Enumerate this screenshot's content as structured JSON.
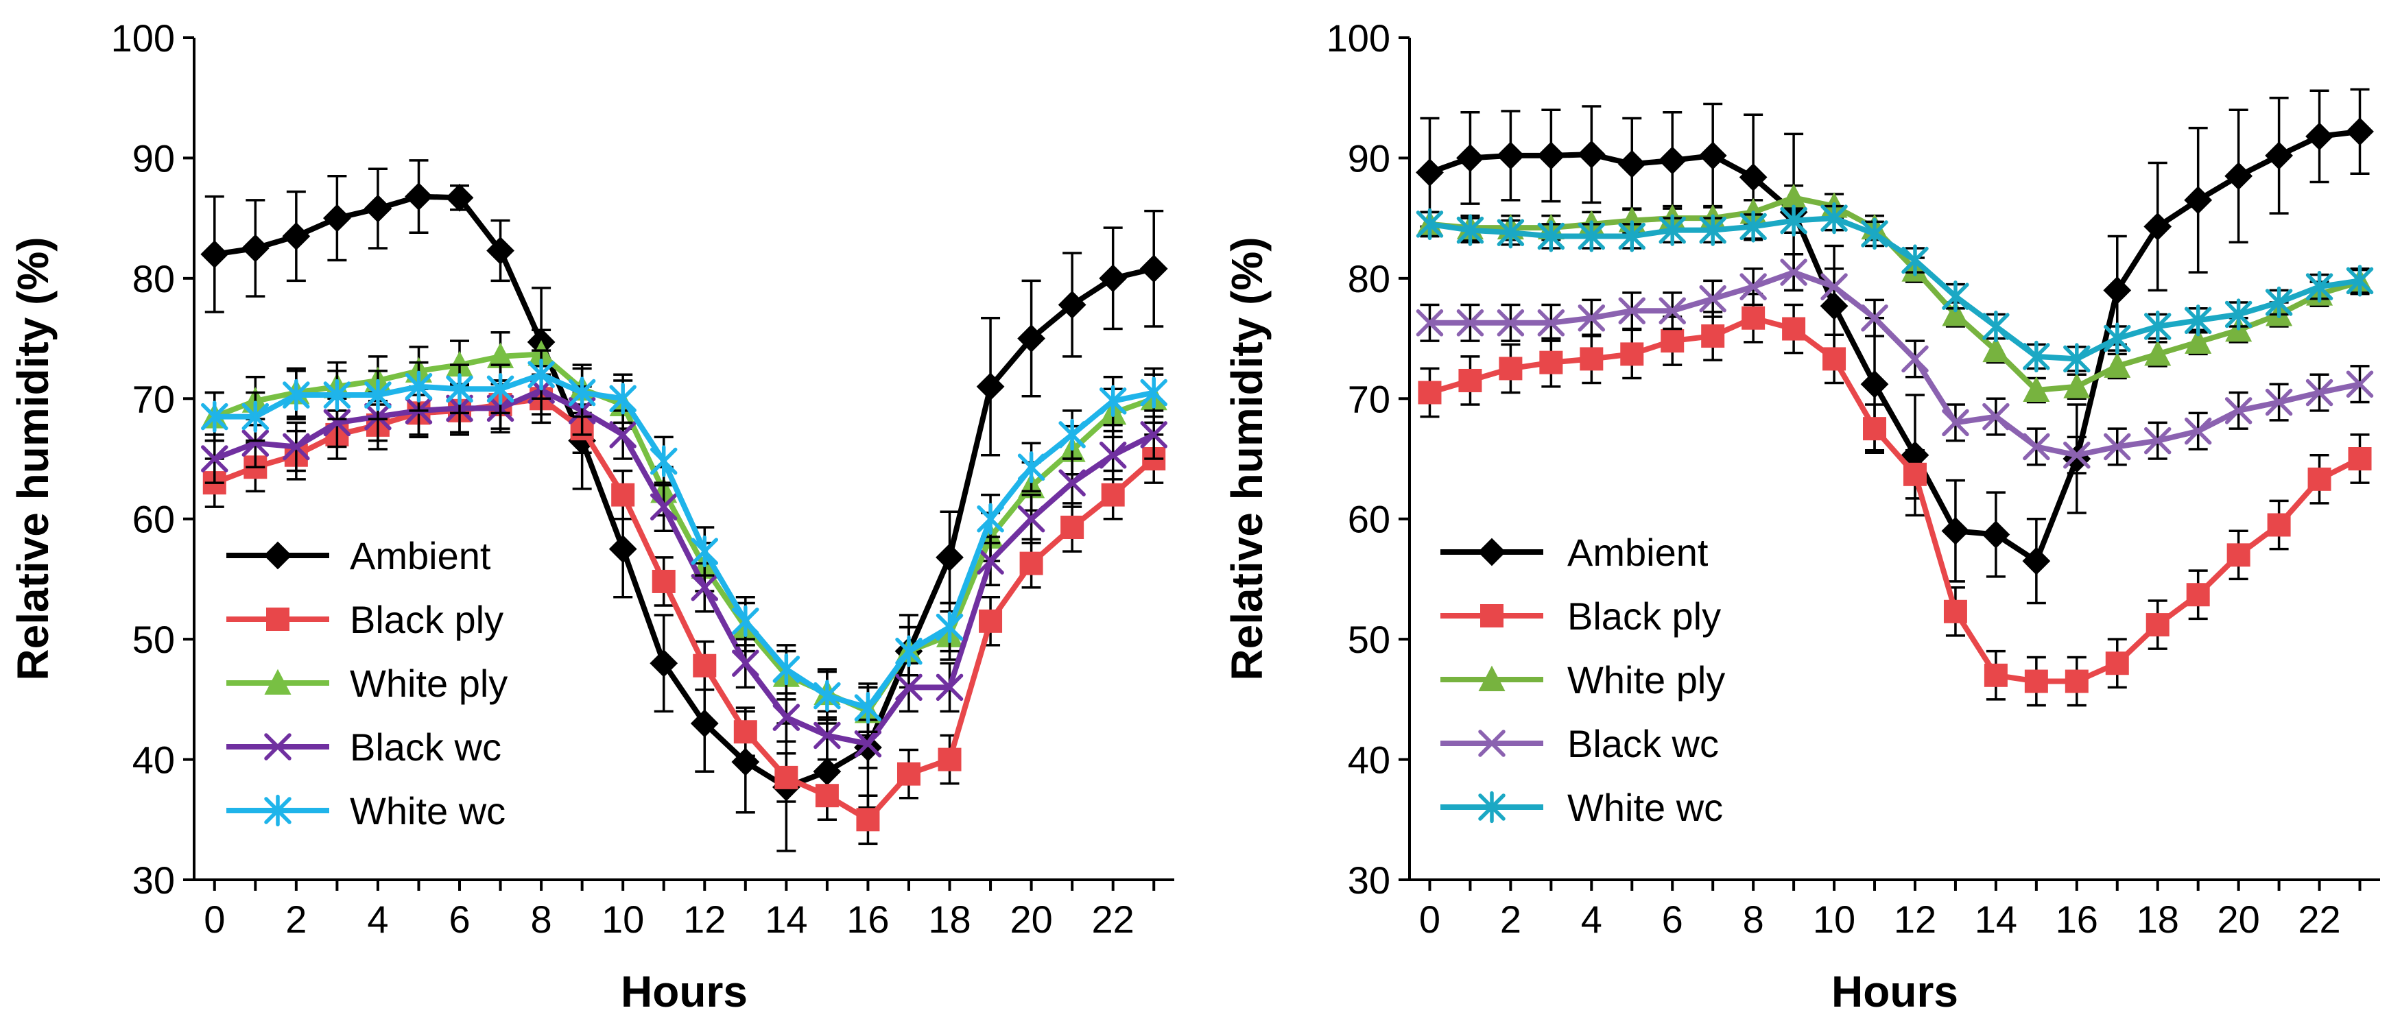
{
  "chart_data": [
    {
      "type": "line",
      "xlabel": "Hours",
      "ylabel": "Relative humidity (%)",
      "xlim": [
        -0.5,
        23.5
      ],
      "ylim": [
        30,
        100
      ],
      "xticks": [
        0,
        2,
        4,
        6,
        8,
        10,
        12,
        14,
        16,
        18,
        20,
        22
      ],
      "yticks": [
        30,
        40,
        50,
        60,
        70,
        80,
        90,
        100
      ],
      "legend_position": "bottom-left",
      "x": [
        0,
        1,
        2,
        3,
        4,
        5,
        6,
        7,
        8,
        9,
        10,
        11,
        12,
        13,
        14,
        15,
        16,
        17,
        18,
        19,
        20,
        21,
        22,
        23
      ],
      "series": [
        {
          "name": "Ambient",
          "color": "#000000",
          "marker": "diamond",
          "values": [
            82,
            82.5,
            83.5,
            85,
            85.8,
            86.8,
            86.7,
            82.3,
            74.7,
            66.5,
            57.5,
            48,
            43,
            39.8,
            37.7,
            39,
            41,
            49,
            56.8,
            71,
            75,
            77.8,
            80,
            80.8
          ],
          "errors": [
            4.8,
            4,
            3.7,
            3.5,
            3.3,
            3,
            1,
            2.5,
            4.5,
            4,
            4,
            4,
            4,
            4.2,
            5.3,
            4,
            5,
            3,
            3.8,
            5.7,
            4.8,
            4.3,
            4.2,
            4.8
          ]
        },
        {
          "name": "Black ply",
          "color": "#E8474A",
          "marker": "square",
          "values": [
            63,
            64.3,
            65.3,
            67,
            67.8,
            68.8,
            69,
            69.5,
            70,
            67.5,
            62,
            54.8,
            47.8,
            42.3,
            38.5,
            37,
            35,
            38.8,
            40,
            51.5,
            56.3,
            59.3,
            62,
            65
          ],
          "errors": [
            2,
            2,
            2,
            2,
            2,
            2,
            2,
            2,
            2,
            2,
            2,
            2,
            2,
            2,
            2,
            2,
            2,
            2,
            2,
            2,
            2,
            2,
            2,
            2
          ]
        },
        {
          "name": "White ply",
          "color": "#78C043",
          "marker": "triangle",
          "values": [
            68.5,
            69.8,
            70.5,
            71,
            71.5,
            72.3,
            72.8,
            73.5,
            73.7,
            70.8,
            69.5,
            62.3,
            56,
            51,
            47,
            45.5,
            44,
            49,
            50.3,
            58.5,
            62.7,
            65.7,
            68.8,
            70
          ],
          "errors": [
            2,
            2,
            2,
            2,
            2,
            2,
            2,
            2,
            2,
            2,
            2,
            2,
            2,
            2,
            2,
            2,
            2,
            2,
            2,
            2,
            2,
            2,
            2,
            2
          ]
        },
        {
          "name": "Black wc",
          "color": "#7030A0",
          "marker": "x",
          "values": [
            65,
            66.3,
            66,
            68,
            68.5,
            69,
            69.2,
            69.2,
            70.7,
            69,
            67,
            61,
            54.3,
            48,
            43.5,
            42,
            41.3,
            46,
            46,
            56.5,
            60,
            63,
            65.3,
            67
          ],
          "errors": [
            2,
            2,
            2,
            2,
            2,
            2,
            2,
            2,
            2,
            2,
            2,
            2,
            2,
            2,
            2,
            2,
            2,
            2,
            2,
            2,
            2,
            2,
            2,
            2
          ]
        },
        {
          "name": "White wc",
          "color": "#1FB4EA",
          "marker": "asterisk",
          "values": [
            68.5,
            68.5,
            70.3,
            70.3,
            70.3,
            71,
            70.8,
            70.8,
            72,
            70.5,
            70,
            64.8,
            57.3,
            51.5,
            47.5,
            45.3,
            44.3,
            49,
            51,
            60,
            64.3,
            67,
            69.8,
            70.5
          ],
          "errors": [
            2,
            2,
            2,
            2,
            2,
            2,
            2,
            2,
            2,
            2,
            2,
            2,
            2,
            2,
            2,
            2,
            2,
            2,
            2,
            2,
            2,
            2,
            2,
            2
          ]
        }
      ]
    },
    {
      "type": "line",
      "xlabel": "Hours",
      "ylabel": "Relative humidity (%)",
      "xlim": [
        -0.5,
        23.5
      ],
      "ylim": [
        30,
        100
      ],
      "xticks": [
        0,
        2,
        4,
        6,
        8,
        10,
        12,
        14,
        16,
        18,
        20,
        22
      ],
      "yticks": [
        30,
        40,
        50,
        60,
        70,
        80,
        90,
        100
      ],
      "legend_position": "bottom-left",
      "x": [
        0,
        1,
        2,
        3,
        4,
        5,
        6,
        7,
        8,
        9,
        10,
        11,
        12,
        13,
        14,
        15,
        16,
        17,
        18,
        19,
        20,
        21,
        22,
        23
      ],
      "series": [
        {
          "name": "Ambient",
          "color": "#000000",
          "marker": "diamond",
          "values": [
            88.8,
            90,
            90.2,
            90.2,
            90.3,
            89.5,
            89.8,
            90.2,
            88.4,
            85.5,
            77.7,
            71.2,
            65.3,
            59,
            58.7,
            56.5,
            65,
            79,
            84.3,
            86.5,
            88.5,
            90.2,
            91.8,
            92.2
          ],
          "errors": [
            4.5,
            3.8,
            3.7,
            3.8,
            4,
            3.8,
            4,
            4.3,
            5.2,
            6.5,
            5,
            5.5,
            5,
            4.2,
            3.5,
            3.5,
            4.5,
            4.5,
            5.3,
            6,
            5.5,
            4.8,
            3.8,
            3.5
          ]
        },
        {
          "name": "Black ply",
          "color": "#E8474A",
          "marker": "square",
          "values": [
            70.5,
            71.5,
            72.5,
            73,
            73.3,
            73.7,
            74.8,
            75.2,
            76.7,
            75.8,
            73.3,
            67.5,
            63.7,
            52.3,
            47,
            46.5,
            46.5,
            48,
            51.2,
            53.7,
            57,
            59.5,
            63.3,
            65
          ],
          "errors": [
            2,
            2,
            2,
            2,
            2,
            2,
            2,
            2,
            2,
            2,
            2,
            2,
            2,
            2,
            2,
            2,
            2,
            2,
            2,
            2,
            2,
            2,
            2,
            2
          ]
        },
        {
          "name": "White ply",
          "color": "#77B33F",
          "marker": "triangle",
          "values": [
            84.5,
            84.2,
            84.2,
            84.2,
            84.5,
            84.8,
            85,
            85,
            85.5,
            86.7,
            86,
            84.2,
            80.7,
            77,
            74,
            70.7,
            71,
            72.7,
            73.7,
            74.7,
            75.7,
            77,
            78.7,
            79.7
          ],
          "errors": [
            1,
            1,
            1,
            1,
            1,
            1,
            1,
            1,
            1,
            1,
            1,
            1,
            1,
            1,
            1,
            1,
            1,
            1,
            1,
            1,
            1,
            1,
            1,
            1
          ]
        },
        {
          "name": "Black wc",
          "color": "#8B62B0",
          "marker": "x",
          "values": [
            76.3,
            76.3,
            76.3,
            76.3,
            76.7,
            77.3,
            77.3,
            78.3,
            79.3,
            80.5,
            79.3,
            76.7,
            73.3,
            68,
            68.5,
            66,
            65.3,
            66,
            66.5,
            67.3,
            69,
            69.7,
            70.5,
            71.2
          ],
          "errors": [
            1.5,
            1.5,
            1.5,
            1.5,
            1.5,
            1.5,
            1.5,
            1.5,
            1.5,
            1.5,
            1.5,
            1.5,
            1.5,
            1.5,
            1.5,
            1.5,
            1.5,
            1.5,
            1.5,
            1.5,
            1.5,
            1.5,
            1.5,
            1.5
          ]
        },
        {
          "name": "White wc",
          "color": "#1BA8C4",
          "marker": "asterisk",
          "values": [
            84.5,
            84,
            83.8,
            83.5,
            83.5,
            83.5,
            84,
            84,
            84.3,
            84.8,
            85,
            83.7,
            81.5,
            78.5,
            76,
            73.5,
            73.3,
            75,
            76,
            76.5,
            77,
            78,
            79.3,
            79.8
          ],
          "errors": [
            1,
            1,
            1,
            1,
            1,
            1,
            1,
            1,
            1,
            1,
            1,
            1,
            1,
            1,
            1,
            1,
            1,
            1,
            1,
            1,
            1,
            1,
            1,
            1
          ]
        }
      ]
    }
  ]
}
